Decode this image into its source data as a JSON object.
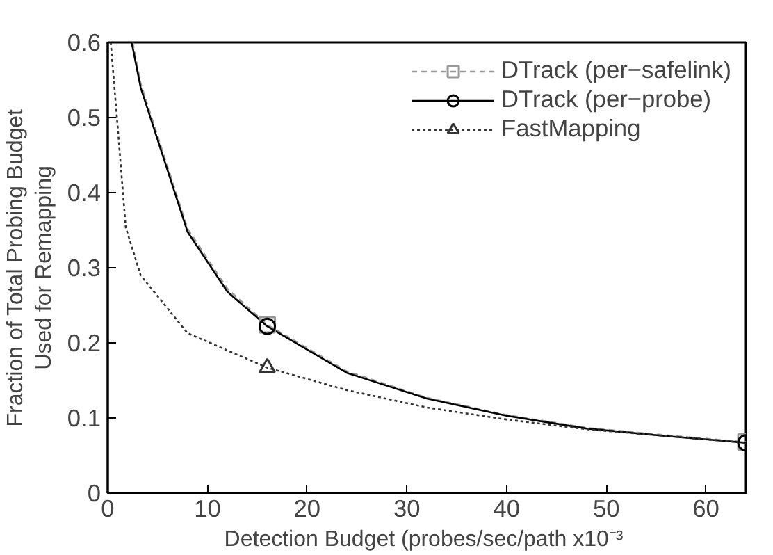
{
  "chart_data": {
    "type": "line",
    "xlabel": "Detection Budget  (probes/sec/path x10⁻³",
    "ylabel": "Fraction of Total Probing Budget\nUsed for Remapping",
    "xlim": [
      0,
      64
    ],
    "ylim": [
      0,
      0.6
    ],
    "xticks": [
      0,
      10,
      20,
      30,
      40,
      50,
      60
    ],
    "yticks": [
      0,
      0.1,
      0.2,
      0.3,
      0.4,
      0.5,
      0.6
    ],
    "grid": false,
    "legend": "top right",
    "series": [
      {
        "name": "DTrack (per−safelink)",
        "color": "#999999",
        "line_style": "dashed",
        "x": [
          2.5,
          3.3,
          8,
          12,
          16,
          24,
          32,
          40,
          48,
          56,
          64
        ],
        "values": [
          0.6,
          0.545,
          0.352,
          0.272,
          0.224,
          0.162,
          0.127,
          0.104,
          0.087,
          0.077,
          0.068
        ]
      },
      {
        "name": "DTrack (per−probe)",
        "color": "#000000",
        "line_style": "solid",
        "x": [
          2.4,
          3.3,
          8,
          12,
          16,
          24,
          32,
          40,
          48,
          56,
          64
        ],
        "values": [
          0.6,
          0.54,
          0.348,
          0.268,
          0.222,
          0.16,
          0.126,
          0.103,
          0.086,
          0.076,
          0.067
        ]
      },
      {
        "name": "FastMapping",
        "color": "#333333",
        "line_style": "dotted",
        "x": [
          0.3,
          1,
          1.8,
          3.3,
          8,
          16,
          24,
          32,
          40,
          48,
          56,
          64
        ],
        "values": [
          0.6,
          0.487,
          0.354,
          0.29,
          0.213,
          0.167,
          0.137,
          0.114,
          0.098,
          0.085,
          0.076,
          0.067
        ]
      },
      {
        "type": "scatter",
        "color": "#999999",
        "marker": "square",
        "x": [
          16,
          64
        ],
        "values": [
          0.224,
          0.068
        ]
      },
      {
        "type": "scatter",
        "color": "#000000",
        "marker": "circle",
        "x": [
          16,
          64
        ],
        "values": [
          0.222,
          0.067
        ]
      },
      {
        "type": "scatter",
        "color": "#333333",
        "marker": "triangle",
        "x": [
          16
        ],
        "values": [
          0.167
        ]
      }
    ]
  }
}
